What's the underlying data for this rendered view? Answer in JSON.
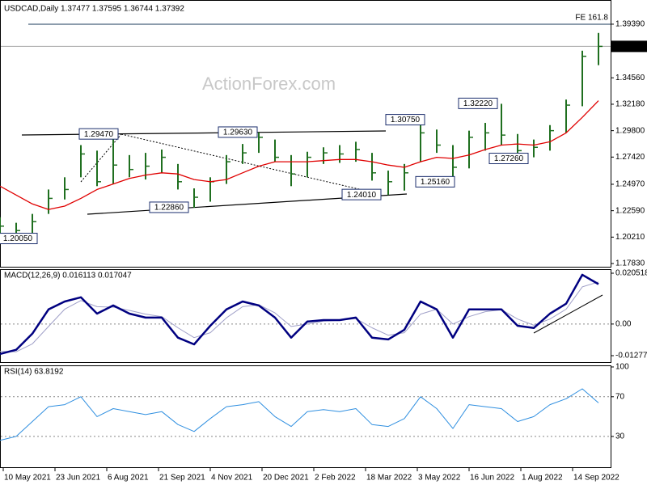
{
  "chart_data": [
    {
      "type": "ohlc",
      "title": "USDCAD,Daily  1.37477 1.37595 1.36744 1.37392",
      "watermark": "ActionForex.com",
      "x": [
        0,
        10,
        20,
        30,
        40,
        50,
        60,
        70,
        80,
        90,
        100,
        110,
        120,
        130,
        140,
        150,
        160,
        170,
        180,
        190,
        200,
        210,
        220,
        230,
        240,
        250,
        260,
        270,
        280,
        290,
        300,
        310,
        320,
        330,
        340,
        350,
        360,
        370
      ],
      "high": [
        1.22,
        1.215,
        1.223,
        1.245,
        1.256,
        1.285,
        1.28,
        1.2947,
        1.276,
        1.278,
        1.281,
        1.268,
        1.246,
        1.256,
        1.276,
        1.286,
        1.2963,
        1.29,
        1.276,
        1.279,
        1.283,
        1.285,
        1.288,
        1.278,
        1.262,
        1.268,
        1.3075,
        1.299,
        1.285,
        1.298,
        1.305,
        1.3222,
        1.295,
        1.29,
        1.303,
        1.326,
        1.37,
        1.386
      ],
      "low": [
        1.206,
        1.2005,
        1.206,
        1.223,
        1.236,
        1.256,
        1.248,
        1.25,
        1.256,
        1.254,
        1.26,
        1.245,
        1.2286,
        1.234,
        1.25,
        1.268,
        1.278,
        1.27,
        1.248,
        1.256,
        1.268,
        1.269,
        1.27,
        1.253,
        1.2401,
        1.244,
        1.27,
        1.278,
        1.2516,
        1.264,
        1.28,
        1.285,
        1.2726,
        1.274,
        1.28,
        1.296,
        1.32,
        1.357
      ],
      "close": [
        1.212,
        1.208,
        1.216,
        1.237,
        1.245,
        1.277,
        1.252,
        1.267,
        1.263,
        1.266,
        1.274,
        1.252,
        1.238,
        1.252,
        1.27,
        1.278,
        1.292,
        1.274,
        1.259,
        1.274,
        1.278,
        1.277,
        1.281,
        1.26,
        1.252,
        1.26,
        1.296,
        1.285,
        1.265,
        1.292,
        1.296,
        1.294,
        1.28,
        1.283,
        1.298,
        1.321,
        1.365,
        1.3739
      ],
      "color": "#1f6f1f",
      "overlay": {
        "color": "#e00000",
        "values": [
          1.248,
          1.24,
          1.232,
          1.227,
          1.23,
          1.237,
          1.245,
          1.25,
          1.255,
          1.258,
          1.26,
          1.259,
          1.254,
          1.252,
          1.254,
          1.26,
          1.266,
          1.27,
          1.27,
          1.27,
          1.271,
          1.272,
          1.272,
          1.27,
          1.267,
          1.265,
          1.27,
          1.274,
          1.273,
          1.276,
          1.281,
          1.285,
          1.286,
          1.285,
          1.288,
          1.296,
          1.31,
          1.325
        ]
      },
      "xlim": [
        0,
        375
      ],
      "ylim": [
        1.1754,
        1.4157
      ],
      "yticks": [
        {
          "value": 1.3939,
          "label": "1.39390"
        },
        {
          "value": 1.3456,
          "label": "1.34560"
        },
        {
          "value": 1.3218,
          "label": "1.32180"
        },
        {
          "value": 1.298,
          "label": "1.29800"
        },
        {
          "value": 1.2742,
          "label": "1.27420"
        },
        {
          "value": 1.2497,
          "label": "1.24970"
        },
        {
          "value": 1.2259,
          "label": "1.22590"
        },
        {
          "value": 1.2021,
          "label": "1.20210"
        },
        {
          "value": 1.1783,
          "label": "1.17830"
        }
      ],
      "last": {
        "value": 1.37392,
        "label": "1.37392"
      },
      "fe": {
        "value": 1.3939,
        "label": "FE 161.8"
      },
      "annotations": [
        {
          "value": 1.2947,
          "label": "1.29470"
        },
        {
          "value": 1.2963,
          "label": "1.29630"
        },
        {
          "value": 1.3075,
          "label": "1.30750"
        },
        {
          "value": 1.3222,
          "label": "1.32220"
        },
        {
          "value": 1.2726,
          "label": "1.27260"
        },
        {
          "value": 1.2516,
          "label": "1.25160"
        },
        {
          "value": 1.2401,
          "label": "1.24010"
        },
        {
          "value": 1.2286,
          "label": "1.22860"
        },
        {
          "value": 1.2005,
          "label": "1.20050"
        }
      ]
    },
    {
      "type": "line",
      "title": "MACD(12,26,9) 0.016113 0.017047",
      "x": [
        0,
        10,
        20,
        30,
        40,
        50,
        60,
        70,
        80,
        90,
        100,
        110,
        120,
        130,
        140,
        150,
        160,
        170,
        180,
        190,
        200,
        210,
        220,
        230,
        240,
        250,
        260,
        270,
        280,
        290,
        300,
        310,
        320,
        330,
        340,
        350,
        360,
        370
      ],
      "series": [
        {
          "color": "#a0a0c8",
          "width": 1,
          "values": [
            -0.011,
            -0.0112,
            -0.008,
            -0.001,
            0.006,
            0.0095,
            0.007,
            0.0068,
            0.0055,
            0.004,
            0.003,
            -0.0015,
            -0.0055,
            -0.0035,
            0.0025,
            0.007,
            0.0078,
            0.0045,
            -0.001,
            0.0,
            0.0012,
            0.0015,
            0.0022,
            -0.0015,
            -0.0045,
            -0.0035,
            0.004,
            0.006,
            0.0,
            0.003,
            0.005,
            0.0058,
            0.002,
            -0.0005,
            0.002,
            0.006,
            0.015,
            0.017
          ]
        },
        {
          "color": "#000080",
          "width": 2.5,
          "values": [
            -0.0121,
            -0.0104,
            -0.0039,
            0.0059,
            0.0091,
            0.0108,
            0.0042,
            0.0075,
            0.0042,
            0.0026,
            0.0026,
            -0.0055,
            -0.0082,
            -0.0007,
            0.0059,
            0.0091,
            0.0075,
            0.0026,
            -0.0055,
            0.001,
            0.0016,
            0.0016,
            0.0026,
            -0.0055,
            -0.0062,
            -0.0023,
            0.0091,
            0.0059,
            -0.0055,
            0.0059,
            0.0059,
            0.0059,
            -0.0007,
            -0.0016,
            0.0042,
            0.0082,
            0.0199,
            0.0161
          ]
        }
      ],
      "xlim": [
        0,
        375
      ],
      "ylim": [
        -0.01538,
        0.02215
      ],
      "yticks": [
        0.020518,
        {
          "value": 0,
          "label": "0.00"
        },
        -0.012771
      ],
      "levels": [
        0
      ]
    },
    {
      "type": "line",
      "title": "RSI(14) 63.8192",
      "x": [
        0,
        10,
        20,
        30,
        40,
        50,
        60,
        70,
        80,
        90,
        100,
        110,
        120,
        130,
        140,
        150,
        160,
        170,
        180,
        190,
        200,
        210,
        220,
        230,
        240,
        250,
        260,
        270,
        280,
        290,
        300,
        310,
        320,
        330,
        340,
        350,
        360,
        370
      ],
      "series": [
        {
          "color": "#2f8fe0",
          "width": 1,
          "values": [
            26,
            30,
            45,
            60,
            62,
            70,
            50,
            58,
            55,
            52,
            55,
            42,
            35,
            48,
            60,
            62,
            65,
            50,
            40,
            55,
            57,
            55,
            58,
            42,
            40,
            48,
            70,
            58,
            38,
            62,
            60,
            58,
            45,
            50,
            62,
            68,
            78,
            63.8
          ]
        }
      ],
      "xlim": [
        0,
        375
      ],
      "ylim": [
        -1,
        101.6
      ],
      "yticks": [
        100,
        70,
        30
      ],
      "levels": [
        70,
        30
      ],
      "xticks": [
        {
          "value": 2,
          "label": "10 May 2021"
        },
        {
          "value": 34,
          "label": "23 Jun 2021"
        },
        {
          "value": 66,
          "label": "6 Aug 2021"
        },
        {
          "value": 98,
          "label": "21 Sep 2021"
        },
        {
          "value": 130,
          "label": "4 Nov 2021"
        },
        {
          "value": 162,
          "label": "20 Dec 2021"
        },
        {
          "value": 194,
          "label": "2 Feb 2022"
        },
        {
          "value": 226,
          "label": "18 Mar 2022"
        },
        {
          "value": 258,
          "label": "3 May 2022"
        },
        {
          "value": 290,
          "label": "16 Jun 2022"
        },
        {
          "value": 322,
          "label": "1 Aug 2022"
        },
        {
          "value": 354,
          "label": "14 Sep 2022"
        }
      ]
    }
  ]
}
